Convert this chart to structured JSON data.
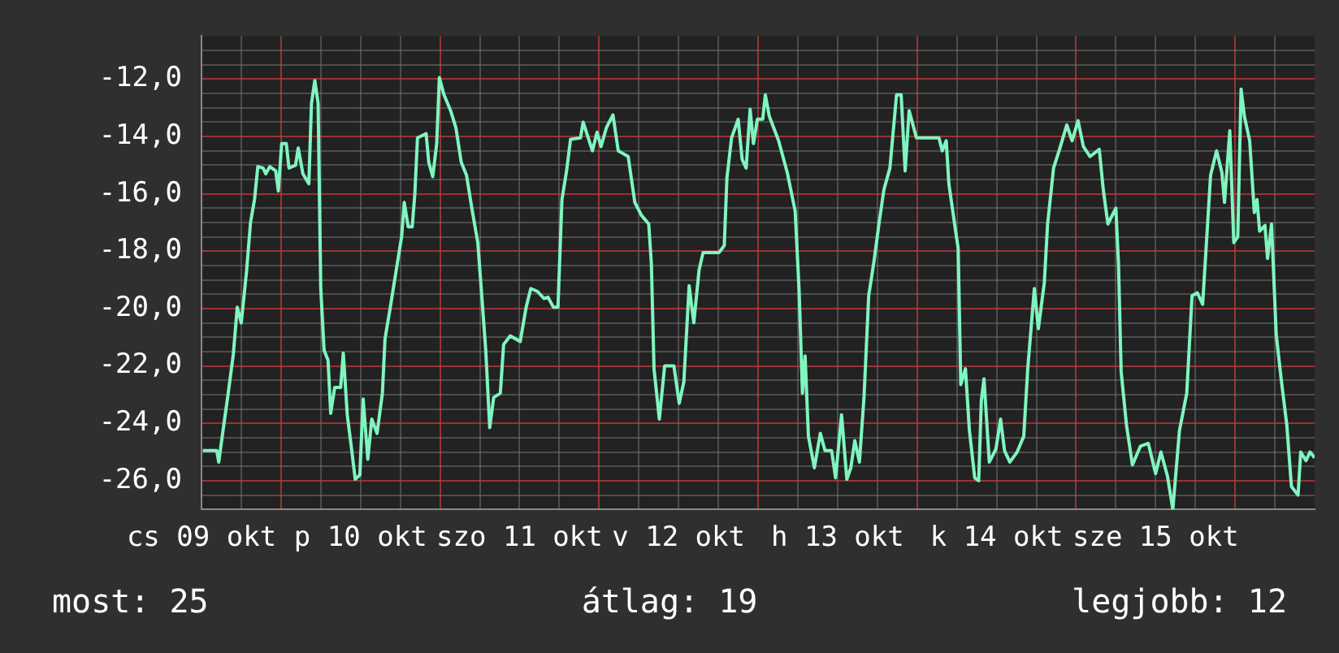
{
  "chart_data": {
    "type": "line",
    "color": "#7ff5bf",
    "grid": true,
    "marker": "none",
    "legend": false,
    "x": [
      "--10-09T12:12",
      "--10-09T14:18",
      "--10-09T14:36",
      "--10-09T15:06",
      "--10-09T16:00",
      "--10-09T16:48",
      "--10-09T17:24",
      "--10-09T18:00",
      "--10-09T18:48",
      "--10-09T19:24",
      "--10-09T20:00",
      "--10-09T20:30",
      "--10-09T21:18",
      "--10-09T21:42",
      "--10-09T22:18",
      "--10-09T23:12",
      "--10-09T23:36",
      "--10-10T00:06",
      "--10-10T00:48",
      "--10-10T01:12",
      "--10-10T02:12",
      "--10-10T02:36",
      "--10-10T03:18",
      "--10-10T04:12",
      "--10-10T04:36",
      "--10-10T05:06",
      "--10-10T05:36",
      "--10-10T06:00",
      "--10-10T06:30",
      "--10-10T07:06",
      "--10-10T07:30",
      "--10-10T08:06",
      "--10-10T09:00",
      "--10-10T09:24",
      "--10-10T10:00",
      "--10-10T10:36",
      "--10-10T11:12",
      "--10-10T11:54",
      "--10-10T12:24",
      "--10-10T13:06",
      "--10-10T13:42",
      "--10-10T14:30",
      "--10-10T15:18",
      "--10-10T15:42",
      "--10-10T16:30",
      "--10-10T17:24",
      "--10-10T18:12",
      "--10-10T18:36",
      "--10-10T19:12",
      "--10-10T19:48",
      "--10-10T20:12",
      "--10-10T20:36",
      "--10-10T21:54",
      "--10-10T22:18",
      "--10-10T22:54",
      "--10-10T23:30",
      "--10-10T23:54",
      "--10-11T00:36",
      "--10-11T01:36",
      "--10-11T02:24",
      "--10-11T03:12",
      "--10-11T04:00",
      "--10-11T04:48",
      "--10-11T05:42",
      "--10-11T06:18",
      "--10-11T06:54",
      "--10-11T07:30",
      "--10-11T08:06",
      "--10-11T09:06",
      "--10-11T09:36",
      "--10-11T10:36",
      "--10-11T12:06",
      "--10-11T13:00",
      "--10-11T13:42",
      "--10-11T14:42",
      "--10-11T15:42",
      "--10-11T16:18",
      "--10-11T17:06",
      "--10-11T17:48",
      "--10-11T18:24",
      "--10-11T19:06",
      "--10-11T19:42",
      "--10-11T21:12",
      "--10-11T21:36",
      "--10-11T23:00",
      "--10-11T23:42",
      "--10-12T00:18",
      "--10-12T01:06",
      "--10-12T02:06",
      "--10-12T02:54",
      "--10-12T04:24",
      "--10-12T05:24",
      "--10-12T06:24",
      "--10-12T07:30",
      "--10-12T07:54",
      "--10-12T08:18",
      "--10-12T09:06",
      "--10-12T09:54",
      "--10-12T11:18",
      "--10-12T12:06",
      "--10-12T12:48",
      "--10-12T13:36",
      "--10-12T14:18",
      "--10-12T15:06",
      "--10-12T15:42",
      "--10-12T18:06",
      "--10-12T18:54",
      "--10-12T19:18",
      "--10-12T20:00",
      "--10-12T21:00",
      "--10-12T21:36",
      "--10-12T22:12",
      "--10-12T22:48",
      "--10-12T23:18",
      "--10-12T23:54",
      "--10-13T00:42",
      "--10-13T01:06",
      "--10-13T01:42",
      "--10-13T03:06",
      "--10-13T04:24",
      "--10-13T05:36",
      "--10-13T06:12",
      "--10-13T06:42",
      "--10-13T07:06",
      "--10-13T07:36",
      "--10-13T08:30",
      "--10-13T09:24",
      "--10-13T10:06",
      "--10-13T11:06",
      "--10-13T11:42",
      "--10-13T12:36",
      "--10-13T13:24",
      "--10-13T14:00",
      "--10-13T14:36",
      "--10-13T15:18",
      "--10-13T16:00",
      "--10-13T16:42",
      "--10-13T17:30",
      "--10-13T18:18",
      "--10-13T19:00",
      "--10-13T19:54",
      "--10-13T20:54",
      "--10-13T21:36",
      "--10-13T22:12",
      "--10-13T22:48",
      "--10-13T23:54",
      "--10-14T03:18",
      "--10-14T03:48",
      "--10-14T04:24",
      "--10-14T04:48",
      "--10-14T05:36",
      "--10-14T06:12",
      "--10-14T06:36",
      "--10-14T07:18",
      "--10-14T07:54",
      "--10-14T08:42",
      "--10-14T09:18",
      "--10-14T09:42",
      "--10-14T10:06",
      "--10-14T10:54",
      "--10-14T11:54",
      "--10-14T12:36",
      "--10-14T13:12",
      "--10-14T14:00",
      "--10-14T15:06",
      "--10-14T16:06",
      "--10-14T16:42",
      "--10-14T17:42",
      "--10-14T18:18",
      "--10-14T19:12",
      "--10-14T19:42",
      "--10-14T20:36",
      "--10-14T21:30",
      "--10-14T22:36",
      "--10-14T23:24",
      "--10-15T00:18",
      "--10-15T01:06",
      "--10-15T02:06",
      "--10-15T03:30",
      "--10-15T04:06",
      "--10-15T04:48",
      "--10-15T06:00",
      "--10-15T06:24",
      "--10-15T06:48",
      "--10-15T07:36",
      "--10-15T08:30",
      "--10-15T09:42",
      "--10-15T10:54",
      "--10-15T12:00",
      "--10-15T12:48",
      "--10-15T13:48",
      "--10-15T14:36",
      "--10-15T15:36",
      "--10-15T16:42",
      "--10-15T17:30",
      "--10-15T18:18",
      "--10-15T19:06",
      "--10-15T19:54",
      "--10-15T20:18",
      "--10-15T21:12",
      "--10-15T22:00",
      "--10-15T22:24",
      "--10-15T23:12",
      "--10-15T23:48",
      "--10-16T00:24",
      "--10-16T00:54",
      "--10-16T01:24",
      "--10-16T02:12",
      "--10-16T02:54",
      "--10-16T03:18",
      "--10-16T03:42",
      "--10-16T04:30",
      "--10-16T04:54",
      "--10-16T05:30",
      "--10-16T06:12",
      "--10-16T07:00",
      "--10-16T07:48",
      "--10-16T08:30",
      "--10-16T09:30",
      "--10-16T09:54",
      "--10-16T10:42",
      "--10-16T11:18",
      "--10-16T12:00"
    ],
    "values": [
      -24.95,
      -24.95,
      -25.35,
      -24.5,
      -23.0,
      -21.6,
      -19.95,
      -20.5,
      -18.7,
      -17.0,
      -16.2,
      -15.05,
      -15.1,
      -15.3,
      -15.05,
      -15.2,
      -15.9,
      -14.25,
      -14.25,
      -15.1,
      -15.0,
      -14.4,
      -15.3,
      -15.65,
      -12.85,
      -12.05,
      -12.85,
      -19.3,
      -21.45,
      -21.8,
      -23.65,
      -22.75,
      -22.75,
      -21.55,
      -23.7,
      -24.8,
      -25.95,
      -25.8,
      -23.15,
      -25.25,
      -23.85,
      -24.35,
      -22.95,
      -21.05,
      -19.95,
      -18.65,
      -17.5,
      -16.3,
      -17.15,
      -17.15,
      -16.0,
      -14.05,
      -13.9,
      -14.9,
      -15.4,
      -14.25,
      -11.95,
      -12.55,
      -13.1,
      -13.7,
      -14.9,
      -15.35,
      -16.5,
      -17.7,
      -19.55,
      -21.45,
      -24.15,
      -23.1,
      -22.95,
      -21.25,
      -20.95,
      -21.15,
      -19.95,
      -19.3,
      -19.4,
      -19.65,
      -19.6,
      -19.95,
      -19.95,
      -16.2,
      -15.2,
      -14.1,
      -14.05,
      -13.5,
      -14.5,
      -13.85,
      -14.35,
      -13.7,
      -13.25,
      -14.5,
      -14.7,
      -16.3,
      -16.75,
      -17.05,
      -18.45,
      -22.1,
      -23.85,
      -22.0,
      -22.0,
      -23.3,
      -22.55,
      -19.2,
      -20.5,
      -18.65,
      -18.05,
      -18.05,
      -17.8,
      -15.45,
      -14.05,
      -13.4,
      -14.8,
      -15.1,
      -13.05,
      -14.25,
      -13.4,
      -13.4,
      -12.55,
      -13.3,
      -14.15,
      -15.25,
      -16.6,
      -19.4,
      -22.95,
      -21.65,
      -24.45,
      -25.55,
      -24.35,
      -24.95,
      -24.95,
      -25.9,
      -23.7,
      -25.95,
      -25.55,
      -24.6,
      -25.35,
      -23.05,
      -19.55,
      -18.35,
      -16.95,
      -15.85,
      -15.1,
      -12.55,
      -12.55,
      -15.2,
      -13.1,
      -14.05,
      -14.05,
      -14.5,
      -14.15,
      -15.65,
      -16.95,
      -17.9,
      -22.65,
      -22.1,
      -24.25,
      -25.9,
      -26.0,
      -23.2,
      -22.45,
      -25.35,
      -24.9,
      -23.85,
      -24.95,
      -25.35,
      -25.0,
      -24.45,
      -22.1,
      -19.3,
      -20.7,
      -19.1,
      -17.05,
      -15.1,
      -14.45,
      -13.6,
      -14.15,
      -13.45,
      -14.35,
      -14.7,
      -14.45,
      -15.85,
      -17.05,
      -16.5,
      -18.45,
      -22.2,
      -24.05,
      -25.45,
      -24.8,
      -24.7,
      -25.75,
      -25.0,
      -25.85,
      -27.0,
      -24.25,
      -22.95,
      -19.55,
      -19.45,
      -19.85,
      -16.85,
      -15.35,
      -14.5,
      -15.25,
      -16.3,
      -13.8,
      -17.7,
      -17.5,
      -12.35,
      -13.3,
      -14.15,
      -16.65,
      -16.2,
      -17.3,
      -17.1,
      -18.25,
      -17.05,
      -20.9,
      -22.55,
      -24.05,
      -26.2,
      -26.5,
      -25.0,
      -25.3,
      -25.0,
      -25.2
    ],
    "xlim": [
      "--10-09T12:00",
      "--10-16T12:00"
    ],
    "xticks": [
      {
        "value": "--10-09T12:00",
        "label": "cs 09 okt"
      },
      {
        "value": "--10-09T18:00",
        "label": null
      },
      {
        "value": "--10-10T00:00",
        "label": null
      },
      {
        "value": "--10-10T06:00",
        "label": null
      },
      {
        "value": "--10-10T12:00",
        "label": "p 10 okt"
      },
      {
        "value": "--10-10T18:00",
        "label": null
      },
      {
        "value": "--10-11T00:00",
        "label": null
      },
      {
        "value": "--10-11T06:00",
        "label": null
      },
      {
        "value": "--10-11T12:00",
        "label": "szo 11 okt"
      },
      {
        "value": "--10-11T18:00",
        "label": null
      },
      {
        "value": "--10-12T00:00",
        "label": null
      },
      {
        "value": "--10-12T06:00",
        "label": null
      },
      {
        "value": "--10-12T12:00",
        "label": "v 12 okt"
      },
      {
        "value": "--10-12T18:00",
        "label": null
      },
      {
        "value": "--10-13T00:00",
        "label": null
      },
      {
        "value": "--10-13T06:00",
        "label": null
      },
      {
        "value": "--10-13T12:00",
        "label": "h 13 okt"
      },
      {
        "value": "--10-13T18:00",
        "label": null
      },
      {
        "value": "--10-14T00:00",
        "label": null
      },
      {
        "value": "--10-14T06:00",
        "label": null
      },
      {
        "value": "--10-14T12:00",
        "label": "k 14 okt"
      },
      {
        "value": "--10-14T18:00",
        "label": null
      },
      {
        "value": "--10-15T00:00",
        "label": null
      },
      {
        "value": "--10-15T06:00",
        "label": null
      },
      {
        "value": "--10-15T12:00",
        "label": "sze 15 okt"
      },
      {
        "value": "--10-15T18:00",
        "label": null
      },
      {
        "value": "--10-16T00:00",
        "label": null
      },
      {
        "value": "--10-16T06:00",
        "label": null
      }
    ],
    "ylim": [
      -27,
      -10.5
    ],
    "yticks": [
      {
        "value": -11,
        "label": null
      },
      {
        "value": -11.5,
        "label": null
      },
      {
        "value": -12,
        "label": "-12,0"
      },
      {
        "value": -12.5,
        "label": null
      },
      {
        "value": -13,
        "label": null
      },
      {
        "value": -13.5,
        "label": null
      },
      {
        "value": -14,
        "label": "-14,0"
      },
      {
        "value": -14.5,
        "label": null
      },
      {
        "value": -15,
        "label": null
      },
      {
        "value": -15.5,
        "label": null
      },
      {
        "value": -16,
        "label": "-16,0"
      },
      {
        "value": -16.5,
        "label": null
      },
      {
        "value": -17,
        "label": null
      },
      {
        "value": -17.5,
        "label": null
      },
      {
        "value": -18,
        "label": "-18,0"
      },
      {
        "value": -18.5,
        "label": null
      },
      {
        "value": -19,
        "label": null
      },
      {
        "value": -19.5,
        "label": null
      },
      {
        "value": -20,
        "label": "-20,0"
      },
      {
        "value": -20.5,
        "label": null
      },
      {
        "value": -21,
        "label": null
      },
      {
        "value": -21.5,
        "label": null
      },
      {
        "value": -22,
        "label": "-22,0"
      },
      {
        "value": -22.5,
        "label": null
      },
      {
        "value": -23,
        "label": null
      },
      {
        "value": -23.5,
        "label": null
      },
      {
        "value": -24,
        "label": "-24,0"
      },
      {
        "value": -24.5,
        "label": null
      },
      {
        "value": -25,
        "label": null
      },
      {
        "value": -25.5,
        "label": null
      },
      {
        "value": -26,
        "label": "-26,0"
      },
      {
        "value": -26.5,
        "label": null
      }
    ],
    "annotations": [
      "most: 25",
      "átlag: 19",
      "legjobb: 12"
    ]
  }
}
